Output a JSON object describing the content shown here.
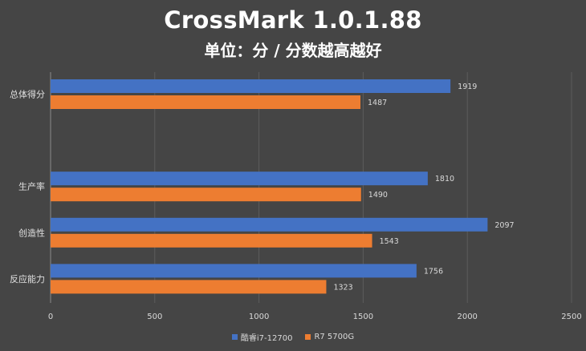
{
  "chart_data": {
    "type": "bar",
    "orientation": "horizontal",
    "title": "CrossMark 1.0.1.88",
    "subtitle": "单位：分 / 分数越高越好",
    "categories": [
      "总体得分",
      "",
      "生产率",
      "创造性",
      "反应能力"
    ],
    "series": [
      {
        "name": "酷睿i7-12700",
        "color": "#4472C4",
        "values": [
          1919,
          null,
          1810,
          2097,
          1756
        ]
      },
      {
        "name": "R7 5700G",
        "color": "#ED7D31",
        "values": [
          1487,
          null,
          1490,
          1543,
          1323
        ]
      }
    ],
    "xlim": [
      0,
      2500
    ],
    "xticks": [
      0,
      500,
      1000,
      1500,
      2000,
      2500
    ],
    "grid": true,
    "legend": "bottom"
  }
}
